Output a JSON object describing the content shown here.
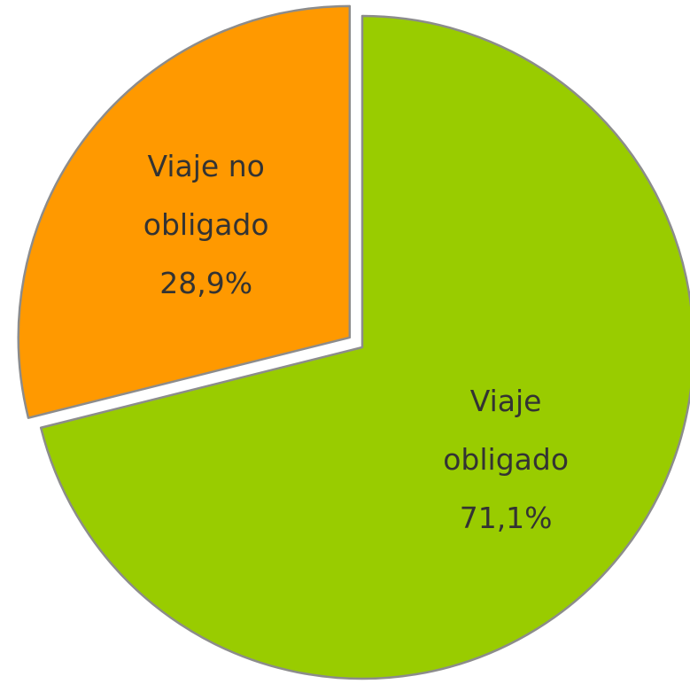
{
  "chart_data": {
    "type": "pie",
    "categories": [
      "Viaje obligado",
      "Viaje no obligado"
    ],
    "values": [
      71.1,
      28.9
    ],
    "value_labels": [
      "71,1%",
      "28,9%"
    ],
    "colors": [
      "#99cc00",
      "#ff9900"
    ],
    "explode": [
      false,
      true
    ]
  }
}
